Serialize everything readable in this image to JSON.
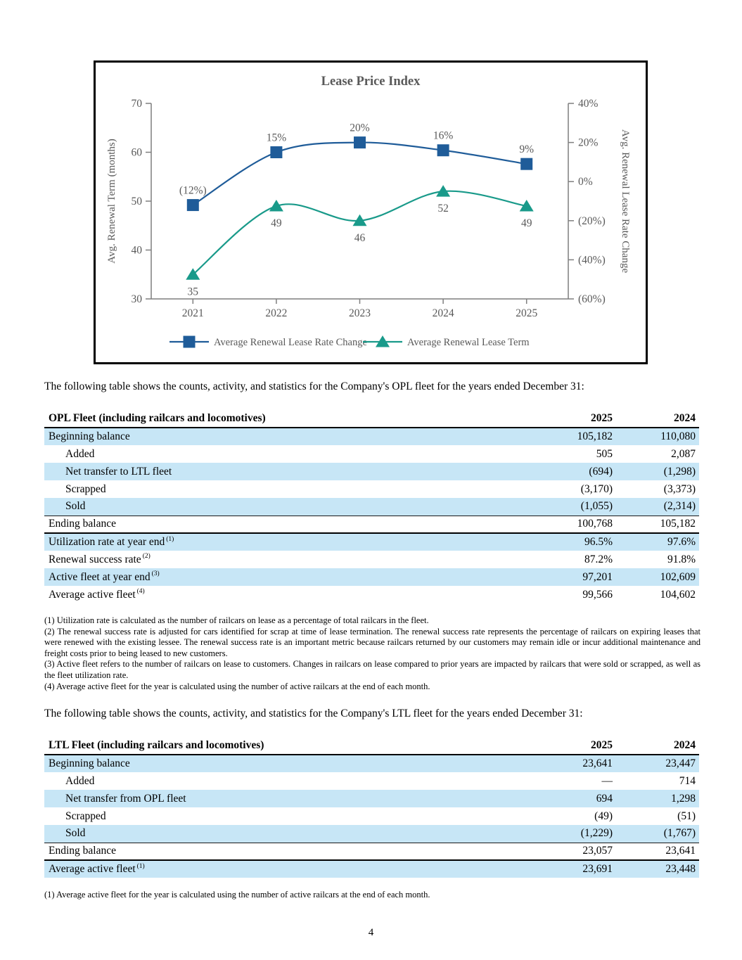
{
  "chart_data": {
    "type": "line",
    "title": "Lease Price Index",
    "categories": [
      "2021",
      "2022",
      "2023",
      "2024",
      "2025"
    ],
    "series": [
      {
        "name": "Average Renewal Lease Rate Change",
        "axis": "right",
        "marker": "square",
        "color": "#1f5c99",
        "values": [
          -12,
          15,
          20,
          16,
          9
        ],
        "point_labels": [
          "(12%)",
          "15%",
          "20%",
          "16%",
          "9%"
        ]
      },
      {
        "name": "Average Renewal Lease Term",
        "axis": "left",
        "marker": "triangle",
        "color": "#199a8a",
        "values": [
          35,
          49,
          46,
          52,
          49
        ],
        "point_labels": [
          "35",
          "49",
          "46",
          "52",
          "49"
        ]
      }
    ],
    "left_axis": {
      "label": "Avg. Renewal Term (months)",
      "range": [
        30,
        70
      ],
      "ticks": [
        30,
        40,
        50,
        60,
        70
      ],
      "tick_labels": [
        "30",
        "40",
        "50",
        "60",
        "70"
      ]
    },
    "right_axis": {
      "label": "Avg. Renewal Lease Rate Change",
      "range": [
        -60,
        40
      ],
      "ticks": [
        -60,
        -40,
        -20,
        0,
        20,
        40
      ],
      "tick_labels": [
        "(60%)",
        "(40%)",
        "(20%)",
        "0%",
        "20%",
        "40%"
      ]
    },
    "legend_position": "bottom",
    "grid": false
  },
  "colors": {
    "row_shade": "#c7e6f6",
    "chart_blue": "#1f5c99",
    "chart_teal": "#199a8a",
    "axis_gray": "#7f7f7f",
    "label_gray": "#595959"
  },
  "intro_opl": "The following table shows the counts, activity, and statistics for the Company's OPL fleet for the years ended December 31:",
  "opl_table": {
    "header": {
      "label": "OPL Fleet (including railcars and locomotives)",
      "col1": "2025",
      "col2": "2024"
    },
    "rows": [
      {
        "label": "Beginning balance",
        "indent": false,
        "sup": "",
        "v1": "105,182",
        "v2": "110,080",
        "shaded": true,
        "rule": ""
      },
      {
        "label": "Added",
        "indent": true,
        "sup": "",
        "v1": "505",
        "v2": "2,087",
        "shaded": false,
        "rule": ""
      },
      {
        "label": "Net transfer to LTL fleet",
        "indent": true,
        "sup": "",
        "v1": "(694)",
        "v2": "(1,298)",
        "shaded": true,
        "rule": ""
      },
      {
        "label": "Scrapped",
        "indent": true,
        "sup": "",
        "v1": "(3,170)",
        "v2": "(3,373)",
        "shaded": false,
        "rule": ""
      },
      {
        "label": "Sold",
        "indent": true,
        "sup": "",
        "v1": "(1,055)",
        "v2": "(2,314)",
        "shaded": true,
        "rule": "medium"
      },
      {
        "label": "Ending balance",
        "indent": false,
        "sup": "",
        "v1": "100,768",
        "v2": "105,182",
        "shaded": false,
        "rule": "heavy"
      },
      {
        "label": "Utilization rate at year end",
        "indent": false,
        "sup": "(1)",
        "v1": "96.5%",
        "v2": "97.6%",
        "shaded": true,
        "rule": ""
      },
      {
        "label": "Renewal success rate",
        "indent": false,
        "sup": "(2)",
        "v1": "87.2%",
        "v2": "91.8%",
        "shaded": false,
        "rule": ""
      },
      {
        "label": "Active fleet at year end",
        "indent": false,
        "sup": "(3)",
        "v1": "97,201",
        "v2": "102,609",
        "shaded": true,
        "rule": ""
      },
      {
        "label": "Average active fleet",
        "indent": false,
        "sup": "(4)",
        "v1": "99,566",
        "v2": "104,602",
        "shaded": false,
        "rule": ""
      }
    ]
  },
  "opl_footnotes": [
    "(1) Utilization rate is calculated as the number of railcars on lease as a percentage of total railcars in the fleet.",
    "(2) The renewal success rate is adjusted for cars identified for scrap at time of lease termination. The renewal success rate represents the percentage of railcars on expiring leases that were renewed with the existing lessee. The renewal success rate is an important metric because railcars returned by our customers may remain idle or incur additional maintenance and freight costs prior to being leased to new customers.",
    "(3) Active fleet refers to the number of railcars on lease to customers. Changes in railcars on lease compared to prior years are impacted by railcars that were sold or scrapped, as well as the fleet utilization rate.",
    "(4) Average active fleet for the year is calculated using the number of active railcars at the end of each month."
  ],
  "intro_ltl": "The following table shows the counts, activity, and statistics for the Company's LTL fleet for the years ended December 31:",
  "ltl_table": {
    "header": {
      "label": "LTL Fleet (including railcars and locomotives)",
      "col1": "2025",
      "col2": "2024"
    },
    "rows": [
      {
        "label": "Beginning balance",
        "indent": false,
        "sup": "",
        "v1": "23,641",
        "v2": "23,447",
        "shaded": true,
        "rule": ""
      },
      {
        "label": "Added",
        "indent": true,
        "sup": "",
        "v1": "—",
        "v2": "714",
        "shaded": false,
        "rule": ""
      },
      {
        "label": "Net transfer from OPL fleet",
        "indent": true,
        "sup": "",
        "v1": "694",
        "v2": "1,298",
        "shaded": true,
        "rule": ""
      },
      {
        "label": "Scrapped",
        "indent": true,
        "sup": "",
        "v1": "(49)",
        "v2": "(51)",
        "shaded": false,
        "rule": ""
      },
      {
        "label": "Sold",
        "indent": true,
        "sup": "",
        "v1": "(1,229)",
        "v2": "(1,767)",
        "shaded": true,
        "rule": "medium"
      },
      {
        "label": "Ending balance",
        "indent": false,
        "sup": "",
        "v1": "23,057",
        "v2": "23,641",
        "shaded": false,
        "rule": "heavy"
      },
      {
        "label": "Average active fleet",
        "indent": false,
        "sup": "(1)",
        "v1": "23,691",
        "v2": "23,448",
        "shaded": true,
        "rule": ""
      }
    ]
  },
  "ltl_footnotes": [
    "(1) Average active fleet for the year is calculated using the number of active railcars at the end of each month."
  ],
  "page_number": "4"
}
